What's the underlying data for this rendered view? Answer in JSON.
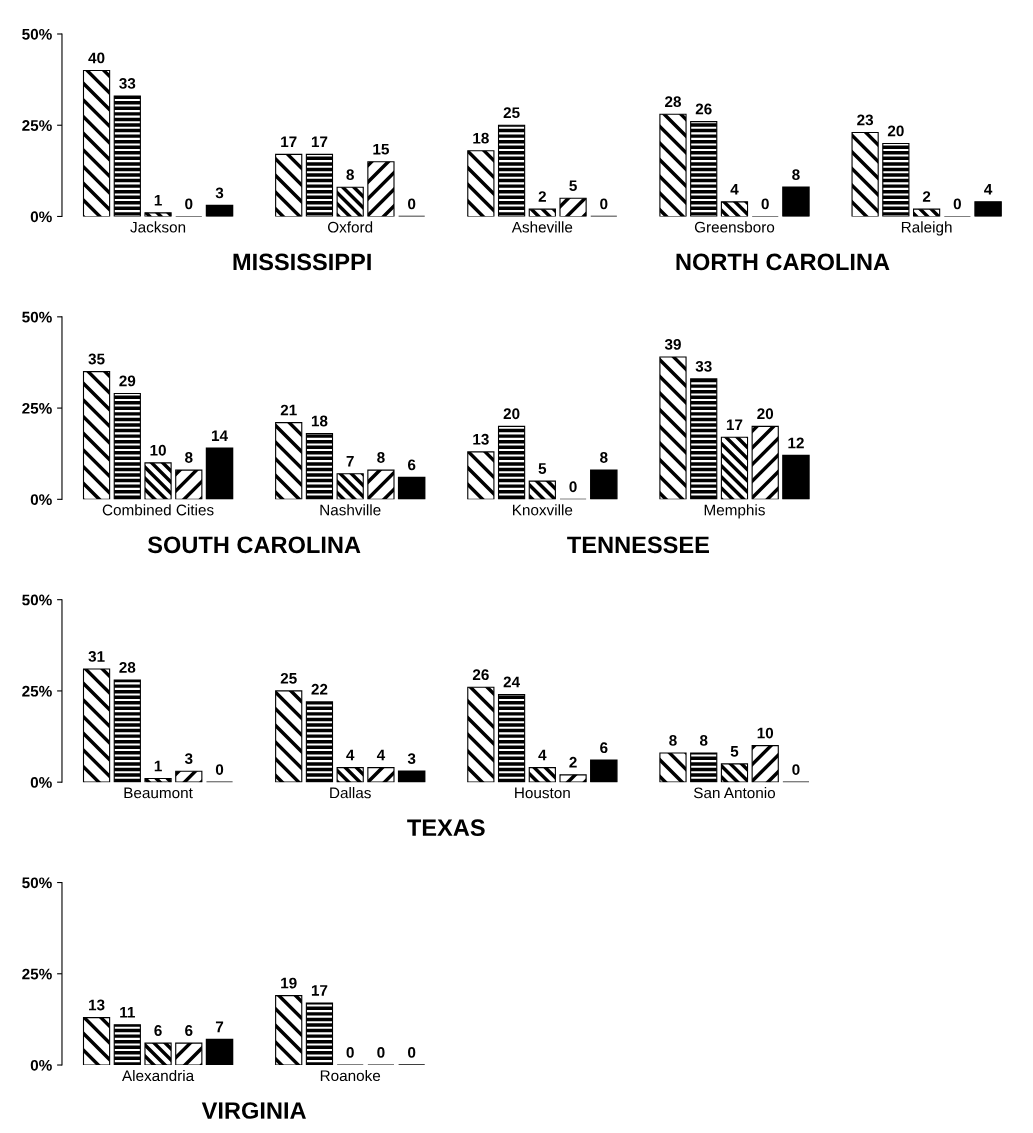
{
  "chart_data": [
    {
      "type": "bar",
      "categories": [
        "Jackson",
        "Oxford",
        "Asheville",
        "Greensboro",
        "Raleigh"
      ],
      "series": [
        {
          "color": "#000000",
          "values": [
            40,
            17,
            18,
            28,
            23
          ]
        },
        {
          "color": "#000000",
          "values": [
            33,
            17,
            25,
            26,
            20
          ]
        },
        {
          "color": "#000000",
          "values": [
            1,
            8,
            2,
            4,
            2
          ]
        },
        {
          "color": "#000000",
          "values": [
            0,
            15,
            5,
            0,
            0
          ]
        },
        {
          "color": "#000000",
          "values": [
            3,
            0,
            0,
            8,
            4
          ]
        }
      ],
      "ylim": [
        0,
        50
      ],
      "yticks": [
        {
          "value": 0,
          "label": "0%"
        },
        {
          "value": 25,
          "label": "25%"
        },
        {
          "value": 50,
          "label": "50%"
        }
      ],
      "data_labels": true,
      "grid": false,
      "legend": false,
      "annotations": [
        "MISSISSIPPI",
        "NORTH CAROLINA"
      ]
    },
    {
      "type": "bar",
      "categories": [
        "Combined Cities",
        "Nashville",
        "Knoxville",
        "Memphis"
      ],
      "series": [
        {
          "color": "#000000",
          "values": [
            35,
            21,
            13,
            39
          ]
        },
        {
          "color": "#000000",
          "values": [
            29,
            18,
            20,
            33
          ]
        },
        {
          "color": "#000000",
          "values": [
            10,
            7,
            5,
            17
          ]
        },
        {
          "color": "#000000",
          "values": [
            8,
            8,
            0,
            20
          ]
        },
        {
          "color": "#000000",
          "values": [
            14,
            6,
            8,
            12
          ]
        }
      ],
      "ylim": [
        0,
        50
      ],
      "yticks": [
        {
          "value": 0,
          "label": "0%"
        },
        {
          "value": 25,
          "label": "25%"
        },
        {
          "value": 50,
          "label": "50%"
        }
      ],
      "data_labels": true,
      "grid": false,
      "legend": false,
      "annotations": [
        "SOUTH CAROLINA",
        "TENNESSEE"
      ]
    },
    {
      "type": "bar",
      "categories": [
        "Beaumont",
        "Dallas",
        "Houston",
        "San Antonio"
      ],
      "series": [
        {
          "color": "#000000",
          "values": [
            31,
            25,
            26,
            8
          ]
        },
        {
          "color": "#000000",
          "values": [
            28,
            22,
            24,
            8
          ]
        },
        {
          "color": "#000000",
          "values": [
            1,
            4,
            4,
            5
          ]
        },
        {
          "color": "#000000",
          "values": [
            3,
            4,
            2,
            10
          ]
        },
        {
          "color": "#000000",
          "values": [
            0,
            3,
            6,
            0
          ]
        }
      ],
      "ylim": [
        0,
        50
      ],
      "yticks": [
        {
          "value": 0,
          "label": "0%"
        },
        {
          "value": 25,
          "label": "25%"
        },
        {
          "value": 50,
          "label": "50%"
        }
      ],
      "data_labels": true,
      "grid": false,
      "legend": false,
      "annotations": [
        "TEXAS"
      ]
    },
    {
      "type": "bar",
      "categories": [
        "Alexandria",
        "Roanoke"
      ],
      "series": [
        {
          "color": "#000000",
          "values": [
            13,
            19
          ]
        },
        {
          "color": "#000000",
          "values": [
            11,
            17
          ]
        },
        {
          "color": "#000000",
          "values": [
            6,
            0
          ]
        },
        {
          "color": "#000000",
          "values": [
            6,
            0
          ]
        },
        {
          "color": "#000000",
          "values": [
            7,
            0
          ]
        }
      ],
      "ylim": [
        0,
        50
      ],
      "yticks": [
        {
          "value": 0,
          "label": "0%"
        },
        {
          "value": 25,
          "label": "25%"
        },
        {
          "value": 50,
          "label": "50%"
        }
      ],
      "data_labels": true,
      "grid": false,
      "legend": false,
      "annotations": [
        "VIRGINIA"
      ]
    }
  ]
}
